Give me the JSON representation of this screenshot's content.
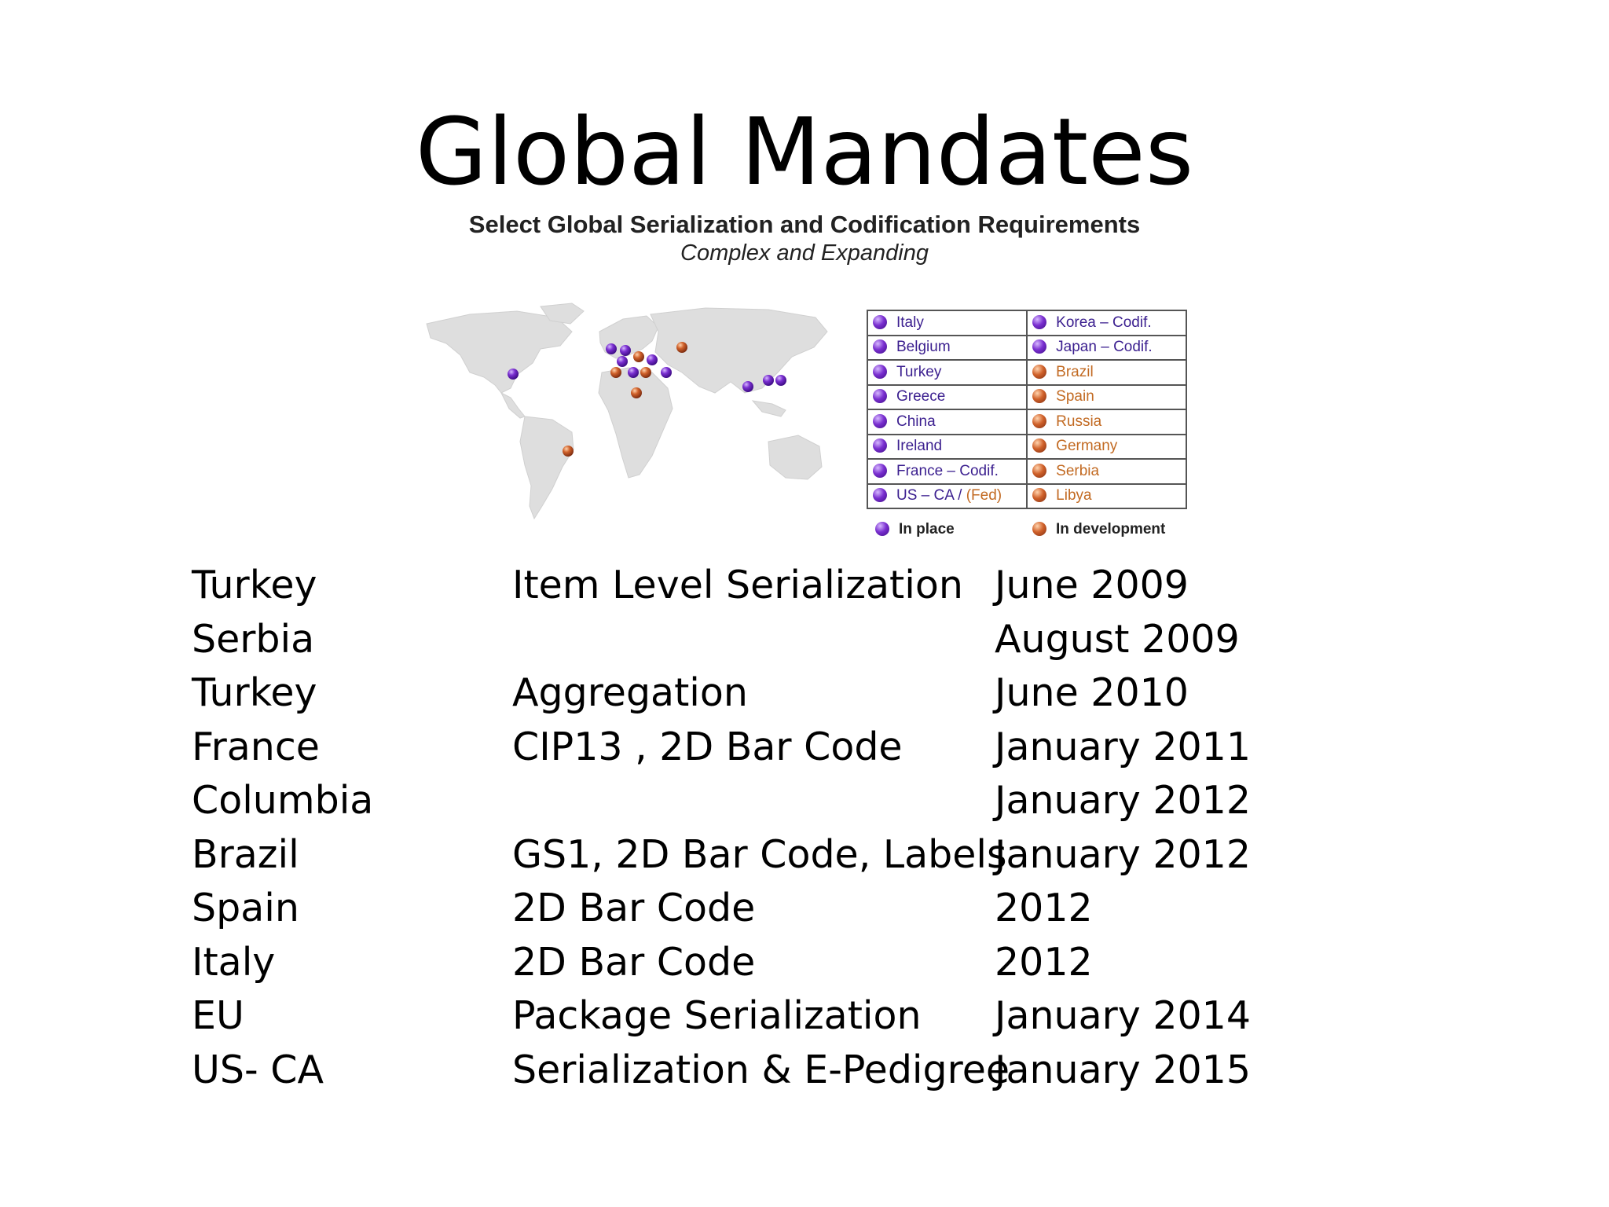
{
  "slide_title": "Global Mandates",
  "figure": {
    "title": "Select Global Serialization and Codification Requirements",
    "subtitle": "Complex and Expanding",
    "legend_left": [
      {
        "label": "Italy",
        "status": "in-place"
      },
      {
        "label": "Belgium",
        "status": "in-place"
      },
      {
        "label": "Turkey",
        "status": "in-place"
      },
      {
        "label": "Greece",
        "status": "in-place"
      },
      {
        "label": "China",
        "status": "in-place"
      },
      {
        "label": "Ireland",
        "status": "in-place"
      },
      {
        "label": "France – Codif.",
        "status": "in-place"
      },
      {
        "label": "US – CA / ",
        "suffix": "(Fed)",
        "status": "in-place"
      }
    ],
    "legend_right": [
      {
        "label": "Korea – Codif.",
        "status": "in-place"
      },
      {
        "label": "Japan – Codif.",
        "status": "in-place"
      },
      {
        "label": "Brazil",
        "status": "in-development"
      },
      {
        "label": "Spain",
        "status": "in-development"
      },
      {
        "label": "Russia",
        "status": "in-development"
      },
      {
        "label": "Germany",
        "status": "in-development"
      },
      {
        "label": "Serbia",
        "status": "in-development"
      },
      {
        "label": "Libya",
        "status": "in-development"
      }
    ],
    "key_in_place": "In place",
    "key_in_development": "In development",
    "colors": {
      "in_place": "#6a2bc4",
      "in_development": "#c8602a",
      "map_land": "#dcdcdc"
    }
  },
  "mandates": [
    {
      "country": "Turkey",
      "requirement": "Item Level Serialization",
      "date": "June 2009"
    },
    {
      "country": "Serbia",
      "requirement": "",
      "date": "August 2009"
    },
    {
      "country": "Turkey",
      "requirement": "Aggregation",
      "date": "June 2010"
    },
    {
      "country": "France",
      "requirement": "CIP13 , 2D Bar Code",
      "date": "January 2011"
    },
    {
      "country": "Columbia",
      "requirement": "",
      "date": "January 2012"
    },
    {
      "country": "Brazil",
      "requirement": "GS1, 2D Bar Code, Labels",
      "date": "January 2012"
    },
    {
      "country": "Spain",
      "requirement": "2D Bar Code",
      "date": "2012"
    },
    {
      "country": "Italy",
      "requirement": "2D Bar Code",
      "date": "2012"
    },
    {
      "country": "EU",
      "requirement": "Package Serialization",
      "date": "January 2014"
    },
    {
      "country": "US- CA",
      "requirement": "Serialization & E-Pedigree",
      "date": "January 2015"
    }
  ]
}
